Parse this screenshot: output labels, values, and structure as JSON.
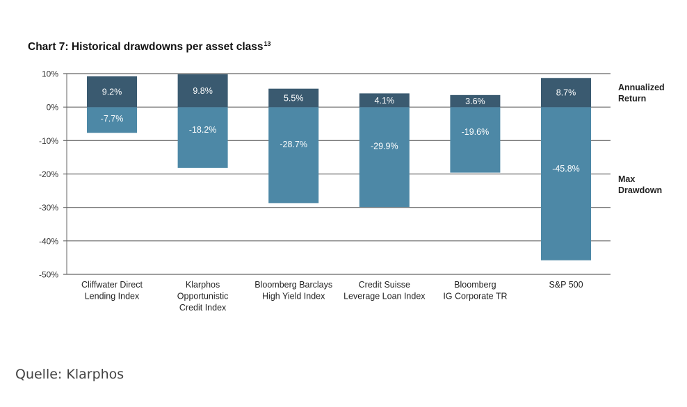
{
  "chart_data": {
    "type": "bar",
    "title": "Chart 7: Historical drawdowns per asset class",
    "title_superscript": "13",
    "categories": [
      [
        "Cliffwater Direct",
        "Lending Index"
      ],
      [
        "Klarphos",
        "Opportunistic",
        "Credit Index"
      ],
      [
        "Bloomberg  Barclays",
        "High Yield Index"
      ],
      [
        "Credit Suisse",
        "Leverage  Loan Index"
      ],
      [
        "Bloomberg",
        "IG Corporate TR"
      ],
      [
        "S&P 500"
      ]
    ],
    "series": [
      {
        "name": "Annualized Return",
        "values": [
          9.2,
          9.8,
          5.5,
          4.1,
          3.6,
          8.7
        ],
        "labels": [
          "9.2%",
          "9.8%",
          "5.5%",
          "4.1%",
          "3.6%",
          "8.7%"
        ],
        "color": "#3a5a70"
      },
      {
        "name": "Max Drawdown",
        "values": [
          -7.7,
          -18.2,
          -28.7,
          -29.9,
          -19.6,
          -45.8
        ],
        "labels": [
          "-7.7%",
          "-18.2%",
          "-28.7%",
          "-29.9%",
          "-19.6%",
          "-45.8%"
        ],
        "color": "#4d88a6"
      }
    ],
    "legend_labels": [
      [
        "Annualized",
        "Return"
      ],
      [
        "Max",
        "Drawdown"
      ]
    ],
    "legend_placement": "right",
    "ylim": [
      -50,
      10
    ],
    "yticks": [
      10,
      0,
      -10,
      -20,
      -30,
      -40,
      -50
    ],
    "ytick_labels": [
      "10%",
      "0%",
      "-10%",
      "-20%",
      "-30%",
      "-40%",
      "-50%"
    ],
    "grid": true,
    "xlabel": "",
    "ylabel": ""
  },
  "source": "Quelle: Klarphos",
  "colors": {
    "return_bar": "#3a5a70",
    "drawdown_bar": "#4d88a6",
    "gridline": "#666666",
    "axis_text": "#333333"
  }
}
